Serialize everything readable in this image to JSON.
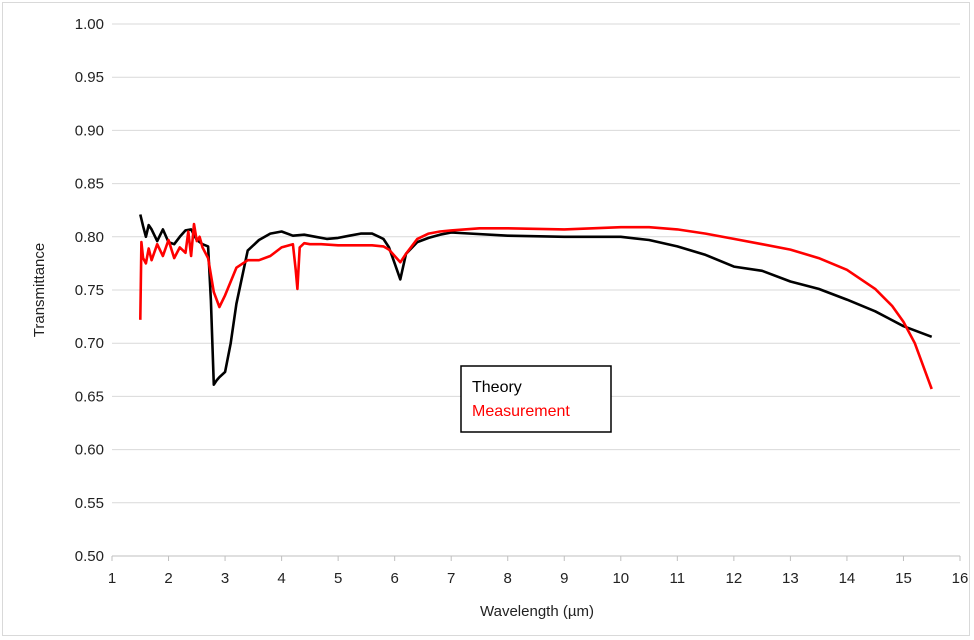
{
  "chart_data": {
    "type": "line",
    "xlabel": "Wavelength (µm)",
    "ylabel": "Transmittance",
    "xlim": [
      1,
      16
    ],
    "ylim": [
      0.5,
      1.0
    ],
    "x_ticks": [
      "1",
      "2",
      "3",
      "4",
      "5",
      "6",
      "7",
      "8",
      "9",
      "10",
      "11",
      "12",
      "13",
      "14",
      "15",
      "16"
    ],
    "y_ticks": [
      "0.50",
      "0.55",
      "0.60",
      "0.65",
      "0.70",
      "0.75",
      "0.80",
      "0.85",
      "0.90",
      "0.95",
      "1.00"
    ],
    "grid": "horizontal",
    "legend_position": "center",
    "series": [
      {
        "name": "Theory",
        "color": "#000000",
        "x": [
          1.5,
          1.55,
          1.6,
          1.65,
          1.7,
          1.8,
          1.9,
          2.0,
          2.1,
          2.2,
          2.3,
          2.4,
          2.5,
          2.6,
          2.7,
          2.75,
          2.8,
          2.85,
          2.9,
          3.0,
          3.1,
          3.2,
          3.4,
          3.6,
          3.8,
          4.0,
          4.2,
          4.4,
          4.6,
          4.8,
          5.0,
          5.2,
          5.4,
          5.6,
          5.8,
          5.9,
          6.0,
          6.1,
          6.2,
          6.4,
          6.6,
          6.8,
          7.0,
          8,
          9,
          10,
          10.5,
          11,
          11.5,
          12,
          12.5,
          13,
          13.5,
          14,
          14.5,
          15,
          15.5
        ],
        "y": [
          0.821,
          0.81,
          0.8,
          0.811,
          0.807,
          0.796,
          0.807,
          0.795,
          0.793,
          0.8,
          0.806,
          0.807,
          0.797,
          0.793,
          0.791,
          0.74,
          0.661,
          0.665,
          0.668,
          0.673,
          0.7,
          0.737,
          0.787,
          0.797,
          0.803,
          0.805,
          0.801,
          0.802,
          0.8,
          0.798,
          0.799,
          0.801,
          0.803,
          0.803,
          0.798,
          0.79,
          0.775,
          0.76,
          0.784,
          0.795,
          0.799,
          0.802,
          0.804,
          0.801,
          0.8,
          0.8,
          0.797,
          0.791,
          0.783,
          0.772,
          0.768,
          0.758,
          0.751,
          0.741,
          0.73,
          0.716,
          0.706
        ]
      },
      {
        "name": "Measurement",
        "color": "#ff0000",
        "x": [
          1.5,
          1.52,
          1.55,
          1.6,
          1.65,
          1.7,
          1.8,
          1.9,
          2.0,
          2.1,
          2.2,
          2.3,
          2.35,
          2.4,
          2.45,
          2.5,
          2.55,
          2.6,
          2.7,
          2.8,
          2.9,
          3.0,
          3.2,
          3.4,
          3.6,
          3.8,
          4.0,
          4.2,
          4.25,
          4.28,
          4.32,
          4.4,
          4.5,
          4.7,
          5.0,
          5.3,
          5.6,
          5.8,
          5.9,
          6.0,
          6.1,
          6.2,
          6.4,
          6.6,
          6.8,
          7.0,
          7.5,
          8,
          9,
          10,
          10.5,
          11,
          11.5,
          12,
          12.5,
          13,
          13.5,
          14,
          14.5,
          14.8,
          15,
          15.2,
          15.5
        ],
        "y": [
          0.722,
          0.795,
          0.78,
          0.775,
          0.789,
          0.778,
          0.793,
          0.782,
          0.797,
          0.78,
          0.79,
          0.785,
          0.805,
          0.782,
          0.812,
          0.796,
          0.8,
          0.79,
          0.78,
          0.748,
          0.734,
          0.745,
          0.771,
          0.778,
          0.778,
          0.782,
          0.79,
          0.793,
          0.769,
          0.751,
          0.79,
          0.794,
          0.793,
          0.793,
          0.792,
          0.792,
          0.792,
          0.791,
          0.788,
          0.782,
          0.776,
          0.784,
          0.798,
          0.803,
          0.805,
          0.806,
          0.808,
          0.808,
          0.807,
          0.809,
          0.809,
          0.807,
          0.803,
          0.798,
          0.793,
          0.788,
          0.78,
          0.769,
          0.751,
          0.735,
          0.72,
          0.7,
          0.657
        ]
      }
    ]
  }
}
